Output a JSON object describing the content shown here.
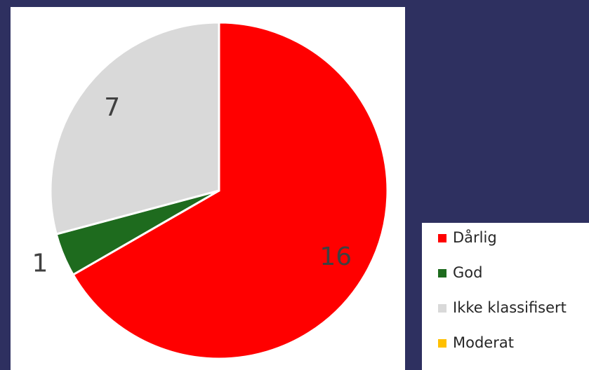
{
  "chart_data": {
    "type": "pie",
    "categories": [
      "Dårlig",
      "God",
      "Ikke klassifisert",
      "Moderat"
    ],
    "values": [
      16,
      1,
      7,
      0
    ],
    "colors": [
      "#ff0000",
      "#1e6b1e",
      "#d9d9d9",
      "#ffc000"
    ],
    "legend": "right"
  }
}
